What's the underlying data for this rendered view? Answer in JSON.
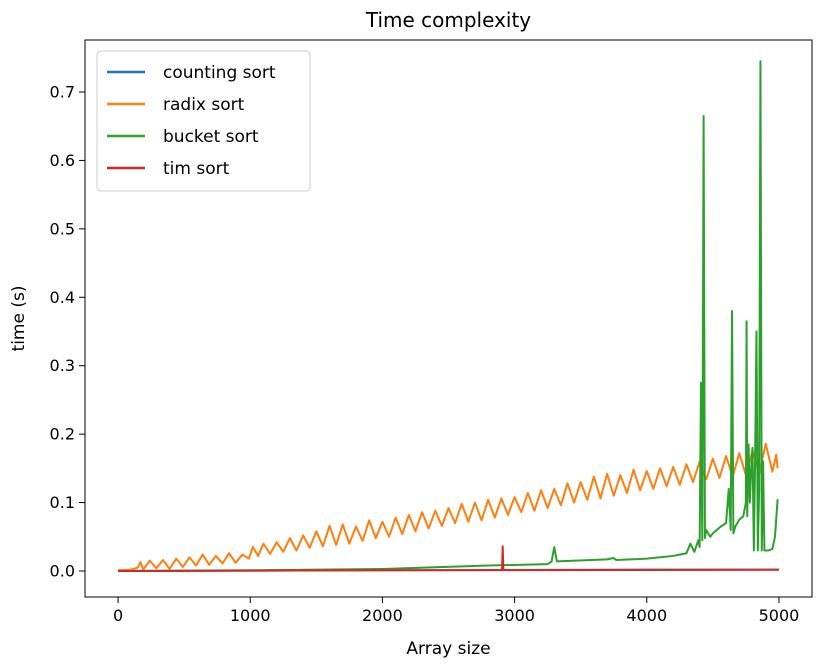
{
  "chart_data": {
    "type": "line",
    "title": "Time complexity",
    "xlabel": "Array size",
    "ylabel": "time (s)",
    "xlim": [
      -250,
      5250
    ],
    "ylim": [
      -0.038,
      0.776
    ],
    "xticks": [
      0,
      1000,
      2000,
      3000,
      4000,
      5000
    ],
    "yticks": [
      0.0,
      0.1,
      0.2,
      0.3,
      0.4,
      0.5,
      0.6,
      0.7
    ],
    "xtick_labels": [
      "0",
      "1000",
      "2000",
      "3000",
      "4000",
      "5000"
    ],
    "ytick_labels": [
      "0.0",
      "0.1",
      "0.2",
      "0.3",
      "0.4",
      "0.5",
      "0.6",
      "0.7"
    ],
    "grid": false,
    "legend_position": "top-left",
    "series": [
      {
        "name": "counting sort",
        "color": "#1f77b4",
        "points": [
          [
            0,
            0.0
          ],
          [
            1000,
            0.0005
          ],
          [
            2000,
            0.001
          ],
          [
            3000,
            0.0015
          ],
          [
            4000,
            0.002
          ],
          [
            5000,
            0.002
          ]
        ]
      },
      {
        "name": "radix sort",
        "color": "#ff7f0e",
        "points": [
          [
            0,
            0.001
          ],
          [
            100,
            0.002
          ],
          [
            150,
            0.005
          ],
          [
            170,
            0.013
          ],
          [
            190,
            0.002
          ],
          [
            240,
            0.015
          ],
          [
            290,
            0.004
          ],
          [
            340,
            0.016
          ],
          [
            390,
            0.003
          ],
          [
            440,
            0.018
          ],
          [
            490,
            0.006
          ],
          [
            540,
            0.02
          ],
          [
            590,
            0.008
          ],
          [
            640,
            0.024
          ],
          [
            690,
            0.009
          ],
          [
            740,
            0.022
          ],
          [
            790,
            0.011
          ],
          [
            840,
            0.026
          ],
          [
            890,
            0.012
          ],
          [
            940,
            0.024
          ],
          [
            990,
            0.018
          ],
          [
            1020,
            0.035
          ],
          [
            1060,
            0.022
          ],
          [
            1100,
            0.04
          ],
          [
            1150,
            0.025
          ],
          [
            1200,
            0.042
          ],
          [
            1250,
            0.028
          ],
          [
            1300,
            0.048
          ],
          [
            1350,
            0.03
          ],
          [
            1400,
            0.052
          ],
          [
            1450,
            0.034
          ],
          [
            1500,
            0.058
          ],
          [
            1550,
            0.036
          ],
          [
            1600,
            0.066
          ],
          [
            1650,
            0.038
          ],
          [
            1700,
            0.068
          ],
          [
            1750,
            0.04
          ],
          [
            1800,
            0.065
          ],
          [
            1850,
            0.044
          ],
          [
            1900,
            0.074
          ],
          [
            1950,
            0.048
          ],
          [
            2000,
            0.072
          ],
          [
            2050,
            0.05
          ],
          [
            2100,
            0.078
          ],
          [
            2150,
            0.054
          ],
          [
            2200,
            0.082
          ],
          [
            2250,
            0.058
          ],
          [
            2300,
            0.086
          ],
          [
            2350,
            0.062
          ],
          [
            2400,
            0.088
          ],
          [
            2450,
            0.066
          ],
          [
            2500,
            0.092
          ],
          [
            2550,
            0.07
          ],
          [
            2600,
            0.098
          ],
          [
            2650,
            0.072
          ],
          [
            2700,
            0.1
          ],
          [
            2750,
            0.074
          ],
          [
            2800,
            0.104
          ],
          [
            2850,
            0.078
          ],
          [
            2900,
            0.106
          ],
          [
            2950,
            0.082
          ],
          [
            3000,
            0.108
          ],
          [
            3050,
            0.086
          ],
          [
            3100,
            0.114
          ],
          [
            3150,
            0.088
          ],
          [
            3200,
            0.118
          ],
          [
            3250,
            0.092
          ],
          [
            3300,
            0.12
          ],
          [
            3350,
            0.096
          ],
          [
            3400,
            0.128
          ],
          [
            3450,
            0.1
          ],
          [
            3500,
            0.13
          ],
          [
            3550,
            0.104
          ],
          [
            3600,
            0.138
          ],
          [
            3650,
            0.106
          ],
          [
            3700,
            0.142
          ],
          [
            3750,
            0.11
          ],
          [
            3800,
            0.14
          ],
          [
            3850,
            0.114
          ],
          [
            3900,
            0.148
          ],
          [
            3950,
            0.118
          ],
          [
            4000,
            0.146
          ],
          [
            4050,
            0.12
          ],
          [
            4100,
            0.15
          ],
          [
            4150,
            0.124
          ],
          [
            4200,
            0.152
          ],
          [
            4250,
            0.126
          ],
          [
            4300,
            0.156
          ],
          [
            4350,
            0.13
          ],
          [
            4400,
            0.16
          ],
          [
            4450,
            0.134
          ],
          [
            4500,
            0.164
          ],
          [
            4550,
            0.136
          ],
          [
            4600,
            0.168
          ],
          [
            4650,
            0.138
          ],
          [
            4700,
            0.172
          ],
          [
            4750,
            0.14
          ],
          [
            4800,
            0.176
          ],
          [
            4850,
            0.142
          ],
          [
            4900,
            0.186
          ],
          [
            4950,
            0.145
          ],
          [
            4980,
            0.17
          ],
          [
            4990,
            0.15
          ]
        ]
      },
      {
        "name": "bucket sort",
        "color": "#2ca02c",
        "points": [
          [
            0,
            0.0
          ],
          [
            1000,
            0.001
          ],
          [
            2000,
            0.003
          ],
          [
            2800,
            0.008
          ],
          [
            3250,
            0.01
          ],
          [
            3280,
            0.014
          ],
          [
            3300,
            0.035
          ],
          [
            3320,
            0.014
          ],
          [
            3700,
            0.017
          ],
          [
            3750,
            0.019
          ],
          [
            3770,
            0.016
          ],
          [
            4000,
            0.018
          ],
          [
            4200,
            0.022
          ],
          [
            4300,
            0.026
          ],
          [
            4330,
            0.04
          ],
          [
            4360,
            0.028
          ],
          [
            4390,
            0.045
          ],
          [
            4400,
            0.035
          ],
          [
            4410,
            0.275
          ],
          [
            4420,
            0.045
          ],
          [
            4430,
            0.665
          ],
          [
            4440,
            0.048
          ],
          [
            4450,
            0.06
          ],
          [
            4480,
            0.05
          ],
          [
            4500,
            0.055
          ],
          [
            4530,
            0.06
          ],
          [
            4560,
            0.065
          ],
          [
            4600,
            0.07
          ],
          [
            4620,
            0.12
          ],
          [
            4635,
            0.06
          ],
          [
            4645,
            0.38
          ],
          [
            4655,
            0.055
          ],
          [
            4670,
            0.065
          ],
          [
            4700,
            0.075
          ],
          [
            4730,
            0.08
          ],
          [
            4750,
            0.1
          ],
          [
            4755,
            0.365
          ],
          [
            4760,
            0.08
          ],
          [
            4770,
            0.185
          ],
          [
            4780,
            0.1
          ],
          [
            4790,
            0.15
          ],
          [
            4800,
            0.18
          ],
          [
            4810,
            0.03
          ],
          [
            4820,
            0.17
          ],
          [
            4830,
            0.35
          ],
          [
            4840,
            0.03
          ],
          [
            4850,
            0.12
          ],
          [
            4860,
            0.745
          ],
          [
            4870,
            0.03
          ],
          [
            4880,
            0.16
          ],
          [
            4890,
            0.03
          ],
          [
            4920,
            0.03
          ],
          [
            4950,
            0.032
          ],
          [
            4970,
            0.05
          ],
          [
            4990,
            0.105
          ]
        ]
      },
      {
        "name": "tim sort",
        "color": "#d62728",
        "points": [
          [
            0,
            0.0
          ],
          [
            1000,
            0.0005
          ],
          [
            2000,
            0.001
          ],
          [
            2905,
            0.0012
          ],
          [
            2910,
            0.036
          ],
          [
            2915,
            0.002
          ],
          [
            2920,
            0.0012
          ],
          [
            4000,
            0.0015
          ],
          [
            5000,
            0.0018
          ]
        ]
      }
    ]
  }
}
